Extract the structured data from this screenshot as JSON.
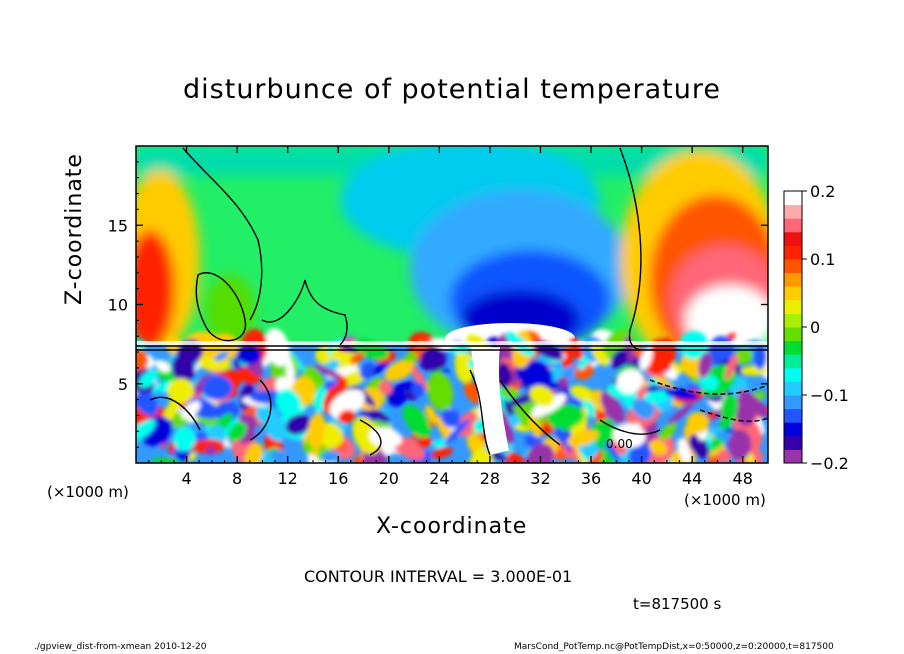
{
  "chart_data": {
    "type": "heatmap",
    "title": "disturbunce of potential temperature",
    "xlabel": "X-coordinate",
    "ylabel": "Z-coordinate",
    "x_unit": "(×1000 m)",
    "xlim": [
      0,
      50
    ],
    "ylim": [
      0,
      20
    ],
    "x_ticks": [
      4,
      8,
      12,
      16,
      20,
      24,
      28,
      32,
      36,
      40,
      44,
      48
    ],
    "y_ticks": [
      5,
      10,
      15
    ],
    "colorbar": {
      "range": [
        -0.2,
        0.2
      ],
      "ticks": [
        {
          "value": 0.2,
          "label": "0.2"
        },
        {
          "value": 0.1,
          "label": "0.1"
        },
        {
          "value": 0,
          "label": "0"
        },
        {
          "value": -0.1,
          "label": "−0.1"
        },
        {
          "value": -0.2,
          "label": "−0.2"
        }
      ],
      "colors": [
        "#9933aa",
        "#3300aa",
        "#0000dd",
        "#2255ff",
        "#3399ff",
        "#22ccff",
        "#00ffee",
        "#00ee99",
        "#00dd33",
        "#66dd00",
        "#aaee00",
        "#eeee00",
        "#ffcc00",
        "#ff9900",
        "#ff5500",
        "#ff2200",
        "#ee1111",
        "#ff6677",
        "#ffaaaa",
        "#ffffff"
      ]
    },
    "contour_label": "0.00",
    "contour_interval": "CONTOUR INTERVAL = 3.000E-01",
    "time": "t=817500 s"
  },
  "footer": {
    "left": "./gpview_dist-from-xmean  2010-12-20",
    "right": "MarsCond_PotTemp.nc@PotTempDist,x=0:50000,z=0:20000,t=817500"
  }
}
